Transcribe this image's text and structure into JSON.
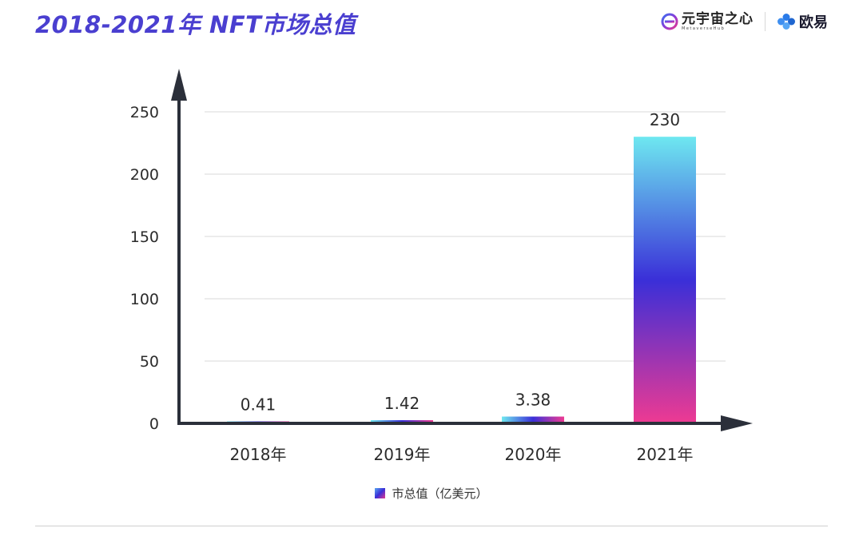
{
  "header": {
    "title": "2018-2021年  NFT市场总值",
    "brand_meta_name": "元宇宙之心",
    "brand_meta_sub": "MetaverseHub",
    "brand_okx_name": "欧易"
  },
  "colors": {
    "title": "#4a3fd0",
    "axis": "#2b2f3a",
    "grid": "#d9d9d9",
    "bar_top": "#6ee8f0",
    "bar_mid": "#3a2fd8",
    "bar_bottom": "#ee3a92"
  },
  "chart_data": {
    "type": "bar",
    "categories": [
      "2018年",
      "2019年",
      "2020年",
      "2021年"
    ],
    "series": [
      {
        "name": "市总值（亿美元）",
        "values": [
          0.41,
          1.42,
          3.38,
          230
        ]
      }
    ],
    "data_labels": [
      "0.41",
      "1.42",
      "3.38",
      "230"
    ],
    "y_ticks": [
      0,
      50,
      100,
      150,
      200,
      250
    ],
    "y_tick_labels": [
      "0",
      "50",
      "100",
      "150",
      "200",
      "250"
    ],
    "ylim": [
      0,
      250
    ],
    "grid": true,
    "legend_position": "bottom-center"
  }
}
